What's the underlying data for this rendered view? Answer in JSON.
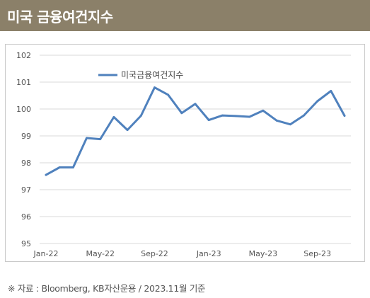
{
  "header": {
    "title": "미국 금융여건지수",
    "bg_color": "#8b8069"
  },
  "chart_data": {
    "type": "line",
    "title": "",
    "xlabel": "",
    "ylabel": "",
    "ylim": [
      95,
      102
    ],
    "yticks": [
      95,
      96,
      97,
      98,
      99,
      100,
      101,
      102
    ],
    "xtick_labels": [
      "Jan-22",
      "May-22",
      "Sep-22",
      "Jan-23",
      "May-23",
      "Sep-23"
    ],
    "xtick_indices": [
      0,
      4,
      8,
      12,
      16,
      20
    ],
    "grid": true,
    "legend_position": "top-left",
    "line_color": "#4f81bd",
    "series": [
      {
        "name": "미국금융여건지수",
        "x": [
          "2022-01",
          "2022-02",
          "2022-03",
          "2022-04",
          "2022-05",
          "2022-06",
          "2022-07",
          "2022-08",
          "2022-09",
          "2022-10",
          "2022-11",
          "2022-12",
          "2023-01",
          "2023-02",
          "2023-03",
          "2023-04",
          "2023-05",
          "2023-06",
          "2023-07",
          "2023-08",
          "2023-09",
          "2023-10",
          "2023-11"
        ],
        "values": [
          97.55,
          97.83,
          97.83,
          98.92,
          98.88,
          99.7,
          99.22,
          99.75,
          100.8,
          100.53,
          99.85,
          100.19,
          99.59,
          99.76,
          99.74,
          99.71,
          99.94,
          99.57,
          99.43,
          99.76,
          100.29,
          100.67,
          99.75
        ]
      }
    ]
  },
  "source": {
    "text": "※ 자료 : Bloomberg, KB자산운용 / 2023.11월 기준"
  }
}
